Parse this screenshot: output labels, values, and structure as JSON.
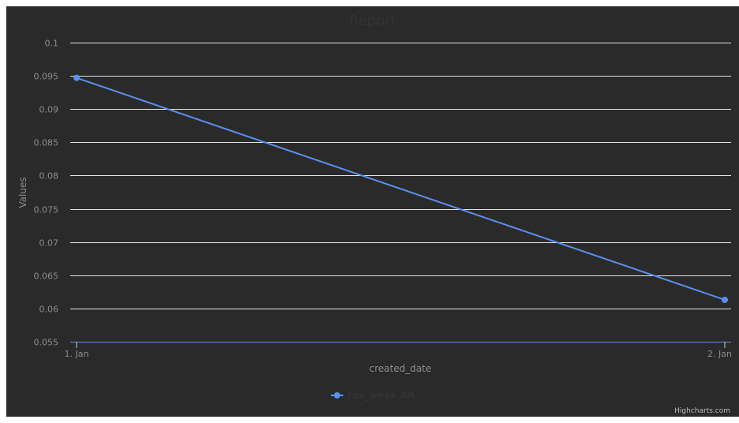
{
  "chart_data": {
    "type": "line",
    "title": "Report",
    "xlabel": "created_date",
    "ylabel": "Values",
    "categories": [
      "1. Jan",
      "2. Jan"
    ],
    "series": [
      {
        "name": "ros_week.AR",
        "values": [
          0.0947,
          0.0613
        ],
        "color": "#5b8ff0"
      }
    ],
    "ylim": [
      0.055,
      0.1
    ],
    "yticks": [
      "0.1",
      "0.095",
      "0.09",
      "0.085",
      "0.08",
      "0.075",
      "0.07",
      "0.065",
      "0.06",
      "0.055"
    ],
    "grid": true,
    "legend": "bottom-center",
    "credits": "Highcharts.com"
  }
}
